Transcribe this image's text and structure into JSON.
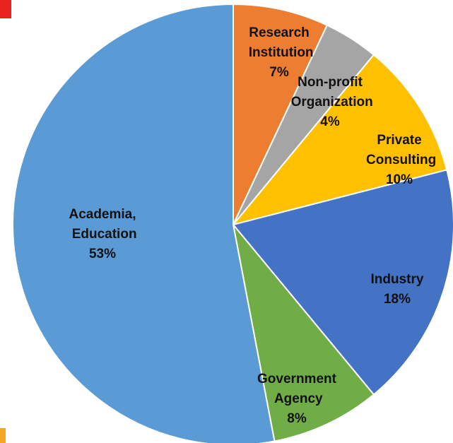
{
  "chart_data": {
    "type": "pie",
    "categories": [
      "Research Institution",
      "Non-profit Organization",
      "Private Consulting",
      "Industry",
      "Government Agency",
      "Academia, Education"
    ],
    "values": [
      7,
      4,
      10,
      18,
      8,
      53
    ],
    "value_labels": [
      "7%",
      "4%",
      "10%",
      "18%",
      "8%",
      "53%"
    ],
    "colors": [
      "#ED7D31",
      "#A5A5A5",
      "#FFC000",
      "#4472C4",
      "#70AD47",
      "#5B9BD5"
    ]
  }
}
